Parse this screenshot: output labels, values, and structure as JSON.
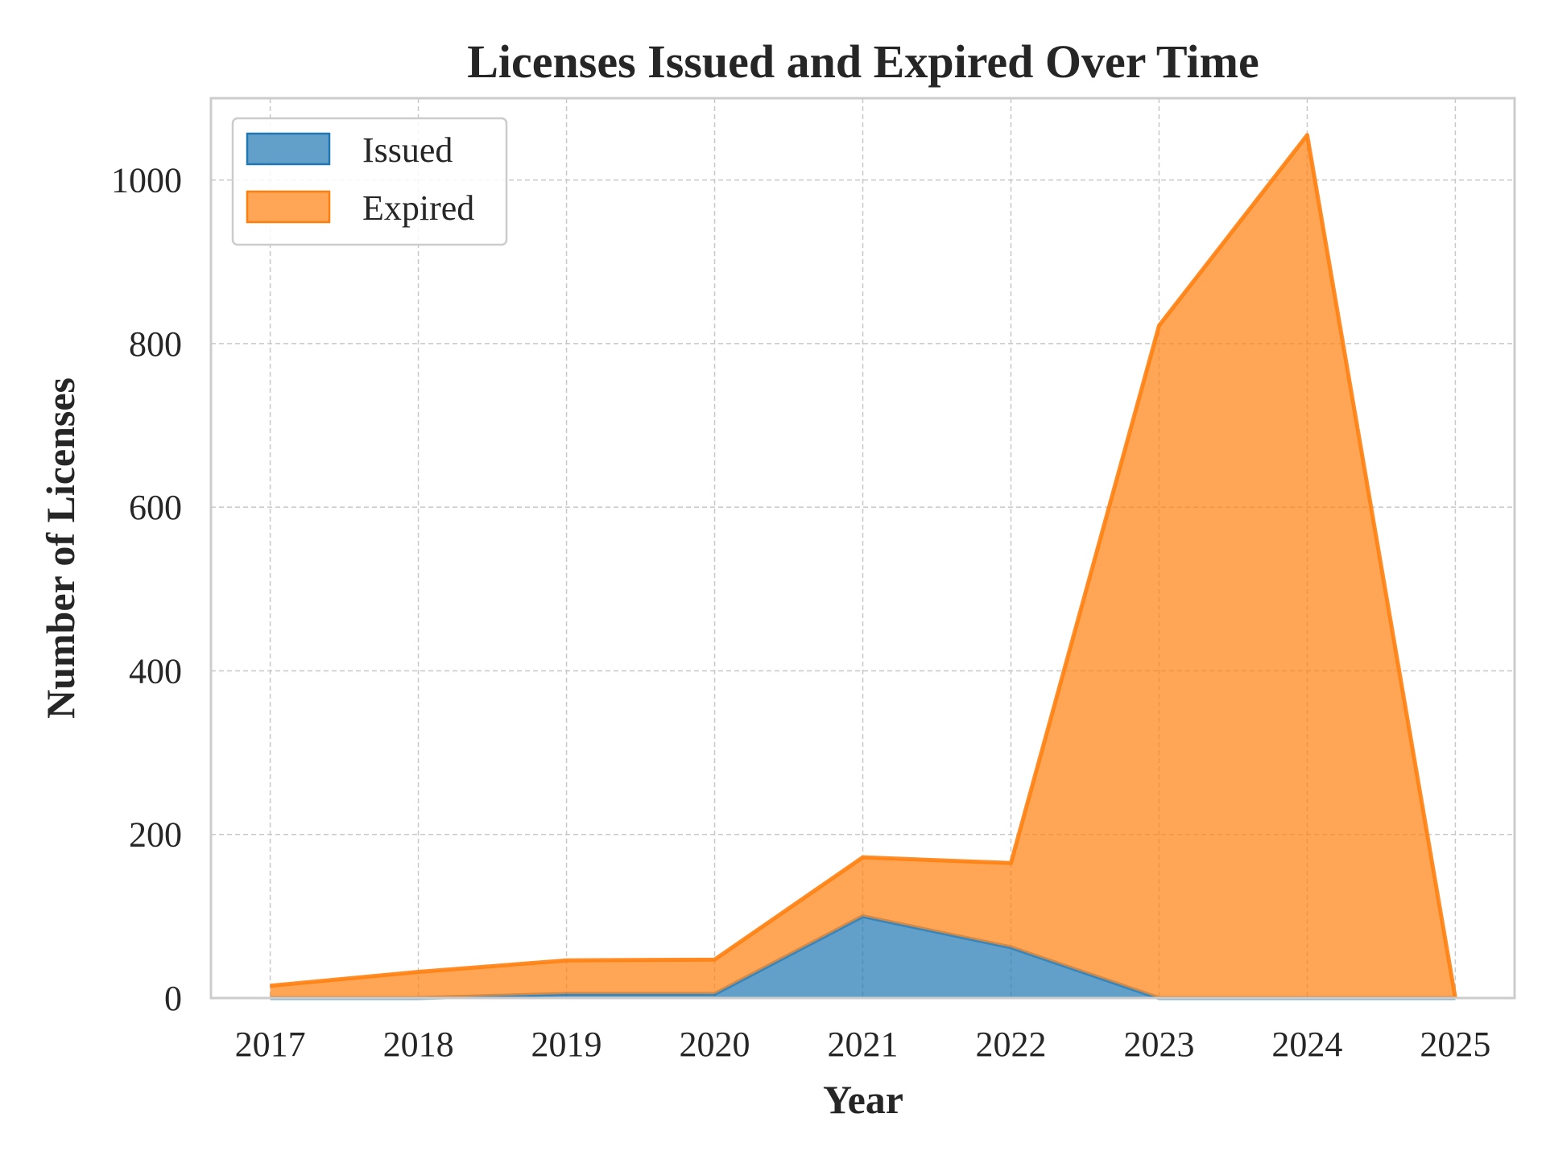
{
  "chart_data": {
    "type": "area",
    "stacked": true,
    "title": "Licenses Issued and Expired Over Time",
    "xlabel": "Year",
    "ylabel": "Number of Licenses",
    "x": [
      "2017",
      "2018",
      "2019",
      "2020",
      "2021",
      "2022",
      "2023",
      "2024",
      "2025"
    ],
    "x_range": [
      2016.6,
      2025.4
    ],
    "ylim": [
      0,
      1100
    ],
    "yticks": [
      "0",
      "200",
      "400",
      "600",
      "800",
      "1000"
    ],
    "grid": true,
    "legend_position": "top-left",
    "series": [
      {
        "name": "Issued",
        "color": "#1f77b4",
        "values": [
          0,
          0,
          5,
          5,
          100,
          62,
          0,
          0,
          0
        ]
      },
      {
        "name": "Expired",
        "color": "#ff7f0e",
        "values": [
          15,
          32,
          41,
          42,
          72,
          103,
          822,
          1055,
          0
        ]
      }
    ]
  }
}
